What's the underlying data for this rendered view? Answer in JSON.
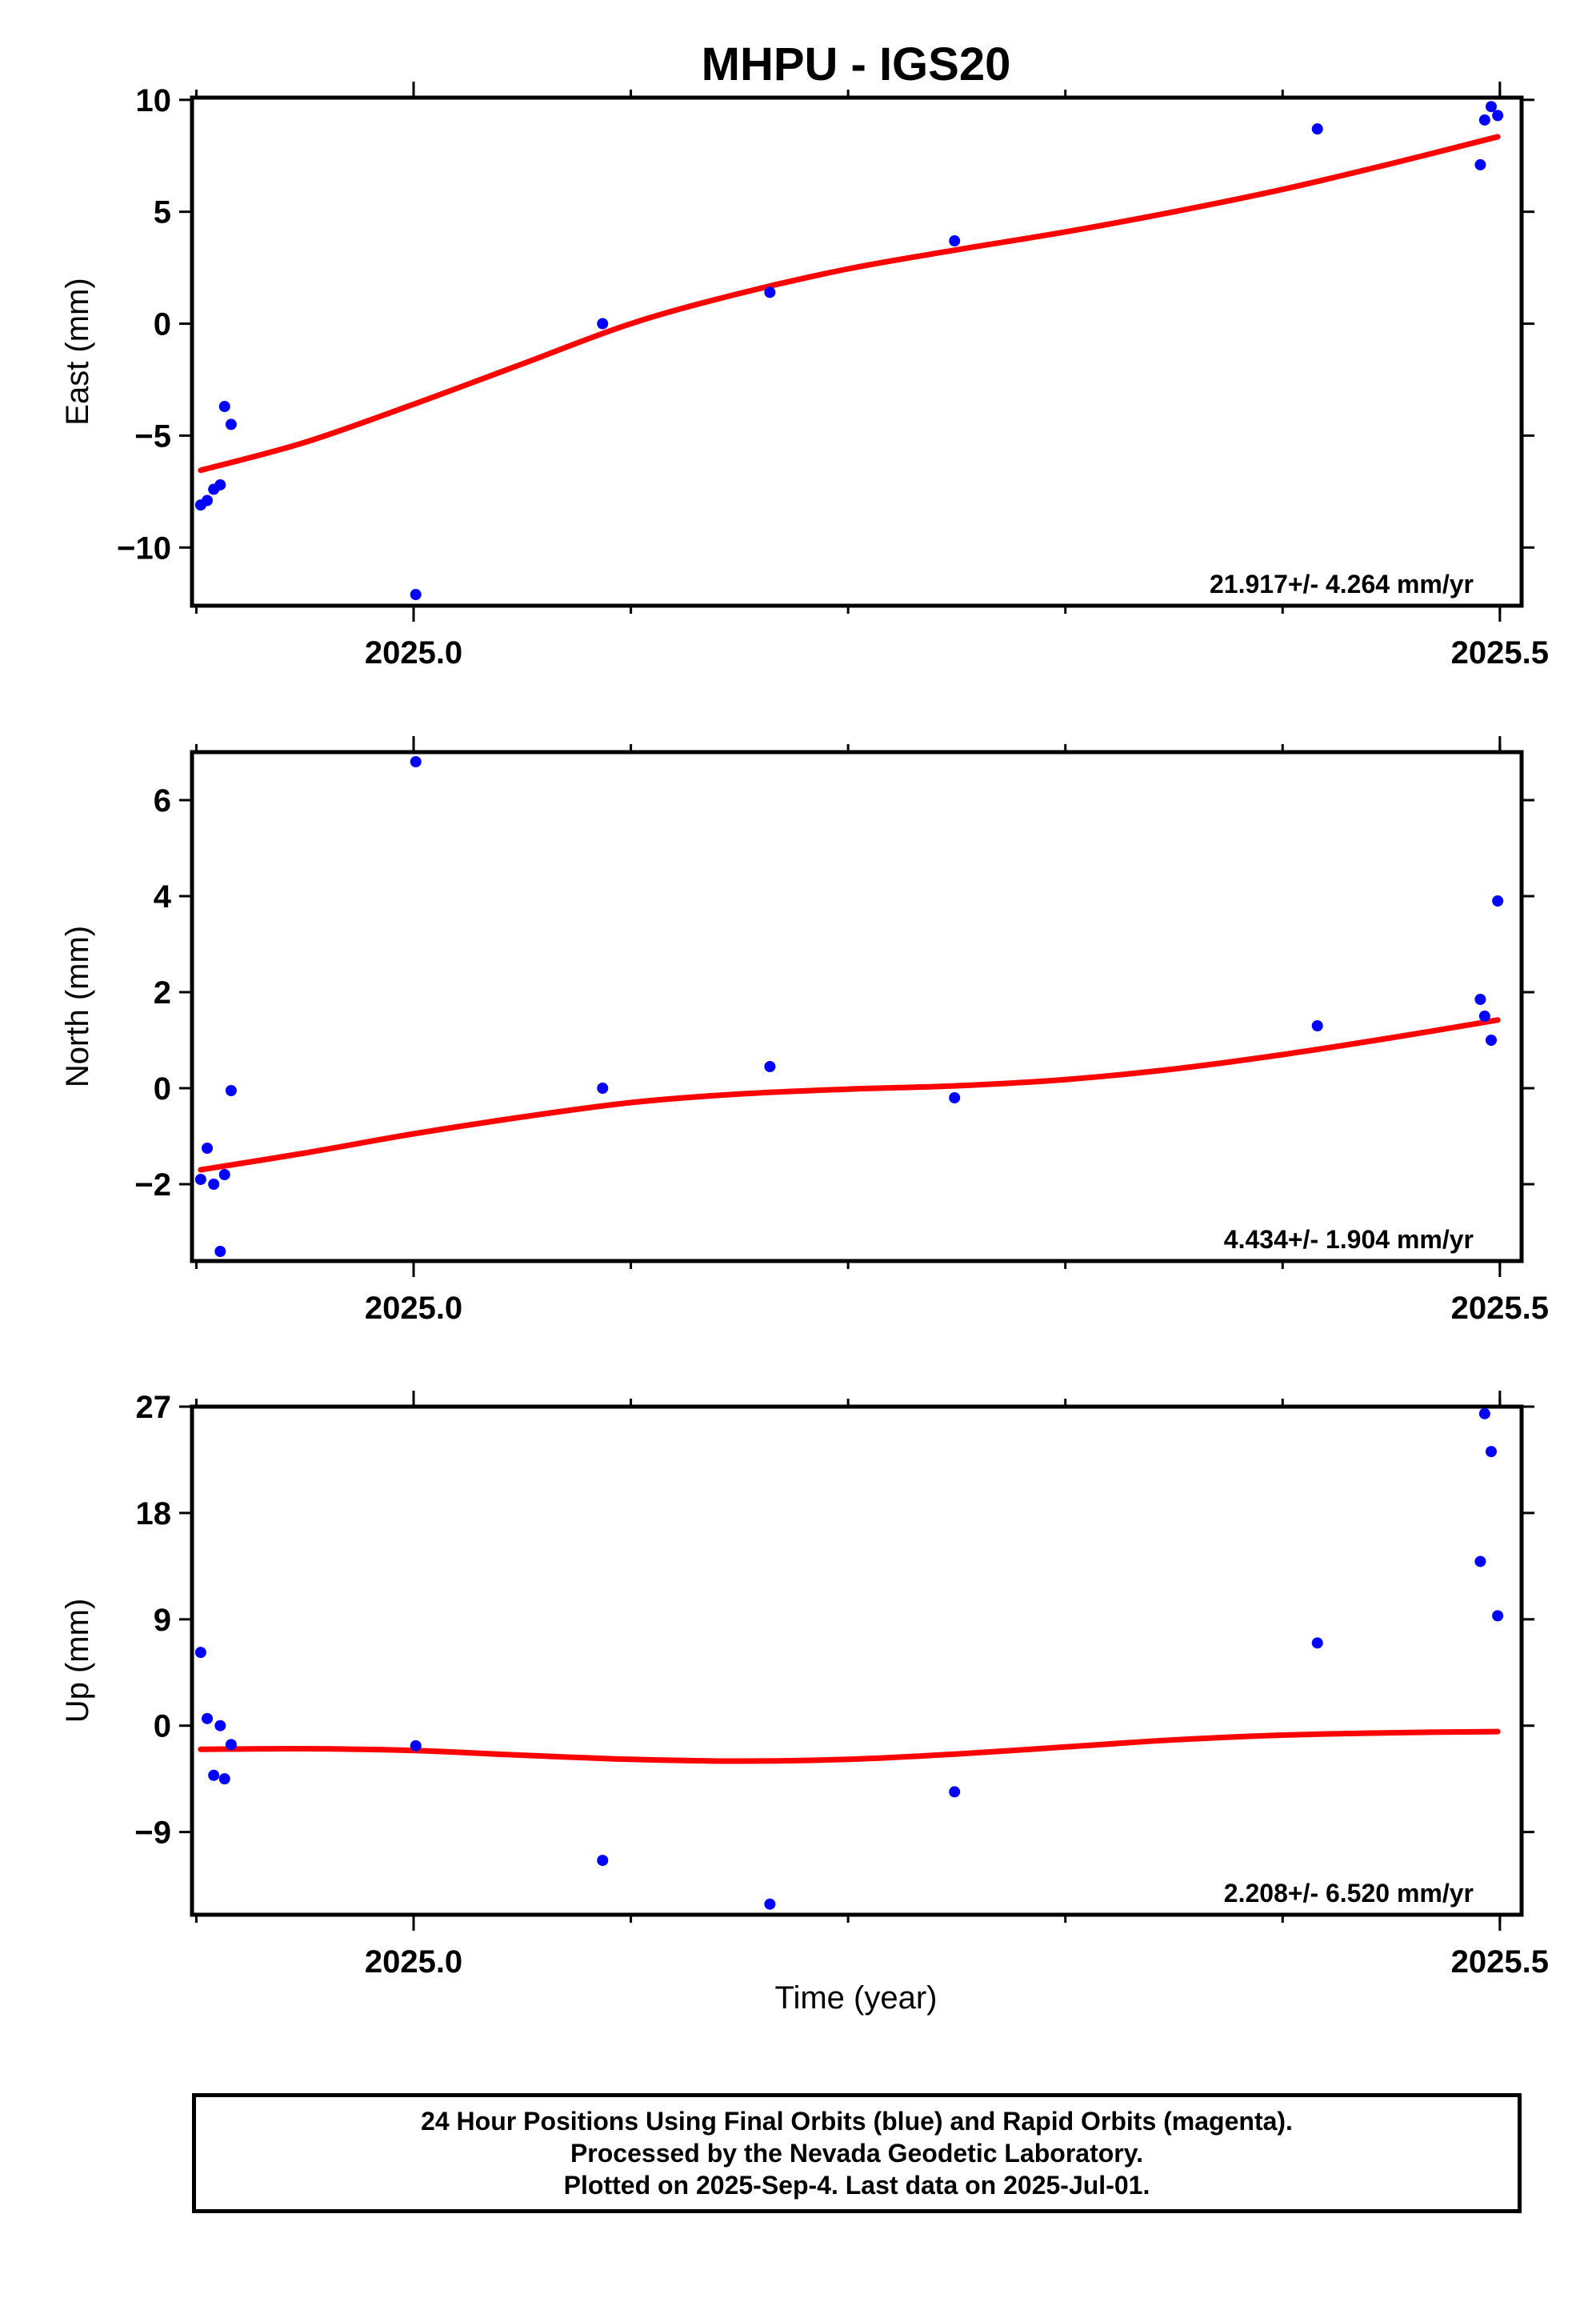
{
  "chart_data": {
    "type": "scatter",
    "title": "MHPU - IGS20",
    "xlabel": "Time (year)",
    "xlim": [
      2024.898,
      2025.51
    ],
    "x_ticks": [
      2025.0,
      2025.5
    ],
    "x_tick_labels": [
      "2025.0",
      "2025.5"
    ],
    "point_color": "#0000ff",
    "fit_color": "#ff0000",
    "panels": [
      {
        "ylabel": "East (mm)",
        "ylim": [
          -12.6,
          10.1
        ],
        "y_ticks": [
          -10,
          -5,
          0,
          5,
          10
        ],
        "y_tick_labels": [
          "−10",
          "−5",
          "0",
          "5",
          "10"
        ],
        "rate_label": "21.917+/- 4.264 mm/yr",
        "points": [
          [
            2024.902,
            -8.1
          ],
          [
            2024.905,
            -7.9
          ],
          [
            2024.908,
            -7.4
          ],
          [
            2024.911,
            -7.2
          ],
          [
            2024.913,
            -3.7
          ],
          [
            2024.916,
            -4.5
          ],
          [
            2025.001,
            -12.1
          ],
          [
            2025.087,
            0.0
          ],
          [
            2025.164,
            1.4
          ],
          [
            2025.249,
            3.7
          ],
          [
            2025.416,
            8.7
          ],
          [
            2025.491,
            7.1
          ],
          [
            2025.493,
            9.1
          ],
          [
            2025.496,
            9.7
          ],
          [
            2025.499,
            9.3
          ]
        ],
        "fit": [
          [
            2024.902,
            -6.55
          ],
          [
            2024.95,
            -5.3
          ],
          [
            2025.0,
            -3.6
          ],
          [
            2025.05,
            -1.8
          ],
          [
            2025.1,
            0.0
          ],
          [
            2025.15,
            1.35
          ],
          [
            2025.2,
            2.45
          ],
          [
            2025.25,
            3.3
          ],
          [
            2025.3,
            4.1
          ],
          [
            2025.35,
            5.0
          ],
          [
            2025.4,
            6.0
          ],
          [
            2025.45,
            7.15
          ],
          [
            2025.499,
            8.35
          ]
        ]
      },
      {
        "ylabel": "North (mm)",
        "ylim": [
          -3.6,
          7.0
        ],
        "y_ticks": [
          -2,
          0,
          2,
          4,
          6
        ],
        "y_tick_labels": [
          "−2",
          "0",
          "2",
          "4",
          "6"
        ],
        "rate_label": "4.434+/- 1.904 mm/yr",
        "points": [
          [
            2024.902,
            -1.9
          ],
          [
            2024.905,
            -1.25
          ],
          [
            2024.908,
            -2.0
          ],
          [
            2024.911,
            -3.4
          ],
          [
            2024.913,
            -1.8
          ],
          [
            2024.916,
            -0.05
          ],
          [
            2025.001,
            6.8
          ],
          [
            2025.087,
            0.0
          ],
          [
            2025.164,
            0.45
          ],
          [
            2025.249,
            -0.2
          ],
          [
            2025.416,
            1.3
          ],
          [
            2025.491,
            1.85
          ],
          [
            2025.493,
            1.5
          ],
          [
            2025.496,
            1.0
          ],
          [
            2025.499,
            3.9
          ]
        ],
        "fit": [
          [
            2024.902,
            -1.7
          ],
          [
            2024.95,
            -1.35
          ],
          [
            2025.0,
            -0.95
          ],
          [
            2025.05,
            -0.6
          ],
          [
            2025.1,
            -0.3
          ],
          [
            2025.15,
            -0.12
          ],
          [
            2025.2,
            -0.02
          ],
          [
            2025.25,
            0.05
          ],
          [
            2025.3,
            0.18
          ],
          [
            2025.35,
            0.4
          ],
          [
            2025.4,
            0.7
          ],
          [
            2025.45,
            1.05
          ],
          [
            2025.499,
            1.42
          ]
        ]
      },
      {
        "ylabel": "Up (mm)",
        "ylim": [
          -16.0,
          27.0
        ],
        "y_ticks": [
          -9,
          0,
          9,
          18,
          27
        ],
        "y_tick_labels": [
          "−9",
          "0",
          "9",
          "18",
          "27"
        ],
        "rate_label": "2.208+/- 6.520 mm/yr",
        "points": [
          [
            2024.902,
            6.2
          ],
          [
            2024.905,
            0.6
          ],
          [
            2024.908,
            -4.2
          ],
          [
            2024.911,
            0.0
          ],
          [
            2024.913,
            -4.5
          ],
          [
            2024.916,
            -1.6
          ],
          [
            2025.001,
            -1.7
          ],
          [
            2025.087,
            -11.4
          ],
          [
            2025.164,
            -15.1
          ],
          [
            2025.249,
            -5.6
          ],
          [
            2025.416,
            7.0
          ],
          [
            2025.491,
            13.9
          ],
          [
            2025.493,
            26.4
          ],
          [
            2025.496,
            23.2
          ],
          [
            2025.499,
            9.3
          ]
        ],
        "fit": [
          [
            2024.902,
            -2.0
          ],
          [
            2024.95,
            -1.95
          ],
          [
            2025.0,
            -2.1
          ],
          [
            2025.05,
            -2.5
          ],
          [
            2025.1,
            -2.85
          ],
          [
            2025.15,
            -3.0
          ],
          [
            2025.2,
            -2.85
          ],
          [
            2025.25,
            -2.4
          ],
          [
            2025.3,
            -1.8
          ],
          [
            2025.35,
            -1.2
          ],
          [
            2025.4,
            -0.8
          ],
          [
            2025.45,
            -0.6
          ],
          [
            2025.499,
            -0.5
          ]
        ]
      }
    ]
  },
  "footer": {
    "line1": "24 Hour Positions Using Final Orbits (blue) and Rapid Orbits (magenta).",
    "line2": "Processed by the Nevada Geodetic Laboratory.",
    "line3": "Plotted on 2025-Sep-4. Last data on 2025-Jul-01."
  }
}
